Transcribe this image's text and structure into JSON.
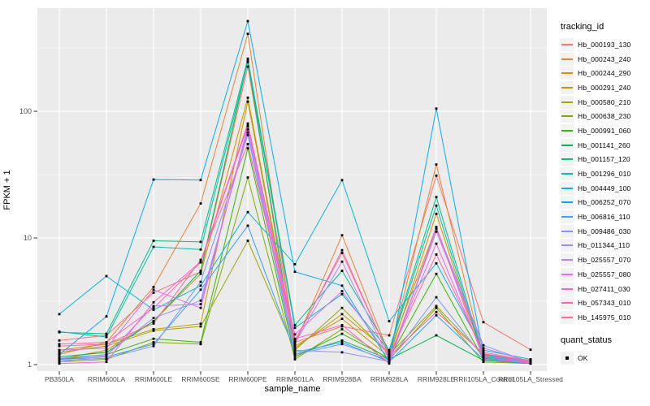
{
  "chart_data": {
    "type": "line",
    "title": "",
    "xlabel": "sample_name",
    "ylabel": "FPKM + 1",
    "y_scale": "log10",
    "ylim": [
      0.9,
      650
    ],
    "grid": "on",
    "legend_position": "right",
    "panel_bg": "#EBEBEB",
    "grid_color": "#FFFFFF",
    "tick_label_color": "#4D4D4D",
    "point_color": "#000000",
    "point_shape": "square",
    "y_ticks": [
      {
        "label": "1",
        "value": 1
      },
      {
        "label": "10",
        "value": 10
      },
      {
        "label": "100",
        "value": 100
      }
    ],
    "y_minor_ticks": [
      3.1623,
      31.623,
      316.23
    ],
    "categories": [
      "PB350LA",
      "RRIM600LA",
      "RRIM600LE",
      "RRIM600SE",
      "RRIM600PE",
      "RRIM901LA",
      "RRIM928BA",
      "RRIM928LA",
      "RRIM928LE",
      "RRII105LA_Control",
      "RRII105LA_Stressed"
    ],
    "legend_title": "tracking_id",
    "series": [
      {
        "name": "Hb_000193_130",
        "color": "#F8766D",
        "values": [
          1.55,
          1.7,
          3.7,
          5.4,
          225,
          1.5,
          2.0,
          1.7,
          31.0,
          2.16,
          1.31
        ]
      },
      {
        "name": "Hb_000243_240",
        "color": "#EA8331",
        "values": [
          1.2,
          1.5,
          4.1,
          18.7,
          408,
          1.45,
          10.5,
          1.2,
          38.0,
          1.15,
          1.05
        ]
      },
      {
        "name": "Hb_000244_290",
        "color": "#D89000",
        "values": [
          1.1,
          1.3,
          2.2,
          5.2,
          128,
          1.4,
          2.3,
          1.15,
          15.5,
          1.12,
          1.04
        ]
      },
      {
        "name": "Hb_000291_240",
        "color": "#C49A00",
        "values": [
          1.3,
          1.45,
          1.9,
          2.1,
          119,
          1.35,
          2.5,
          1.25,
          12.2,
          1.2,
          1.08
        ]
      },
      {
        "name": "Hb_000580_210",
        "color": "#A3A500",
        "values": [
          1.25,
          1.4,
          1.85,
          2.0,
          9.5,
          1.3,
          2.8,
          1.2,
          2.9,
          1.18,
          1.06
        ]
      },
      {
        "name": "Hb_000638_230",
        "color": "#7CAE00",
        "values": [
          1.05,
          1.1,
          1.5,
          1.45,
          30.0,
          1.1,
          1.9,
          1.1,
          2.8,
          1.05,
          1.02
        ]
      },
      {
        "name": "Hb_000991_060",
        "color": "#39B600",
        "values": [
          1.1,
          1.2,
          1.6,
          1.5,
          51.0,
          1.15,
          1.75,
          1.12,
          5.2,
          1.1,
          1.03
        ]
      },
      {
        "name": "Hb_001141_260",
        "color": "#00BB4E",
        "values": [
          1.15,
          1.25,
          2.2,
          5.5,
          250,
          1.2,
          1.55,
          1.1,
          1.7,
          1.08,
          1.02
        ]
      },
      {
        "name": "Hb_001157_120",
        "color": "#00C087",
        "values": [
          1.8,
          1.75,
          9.5,
          9.3,
          260,
          2.05,
          5.5,
          1.3,
          21.0,
          1.15,
          1.05
        ]
      },
      {
        "name": "Hb_001296_010",
        "color": "#00C0B2",
        "values": [
          1.82,
          1.65,
          8.5,
          8.1,
          245,
          1.95,
          3.6,
          1.28,
          18.0,
          1.12,
          1.04
        ]
      },
      {
        "name": "Hb_004449_100",
        "color": "#00BCD8",
        "values": [
          2.5,
          5.0,
          2.7,
          4.2,
          16.0,
          6.2,
          28.6,
          2.2,
          6.3,
          1.3,
          1.1
        ]
      },
      {
        "name": "Hb_006252_070",
        "color": "#00B0F6",
        "values": [
          1.2,
          2.4,
          28.9,
          28.6,
          515,
          5.4,
          4.2,
          1.05,
          105,
          1.2,
          1.05
        ]
      },
      {
        "name": "Hb_006816_110",
        "color": "#35A2FF",
        "values": [
          1.1,
          1.15,
          1.45,
          3.9,
          12.5,
          1.25,
          1.5,
          1.05,
          2.45,
          1.1,
          1.02
        ]
      },
      {
        "name": "Hb_009486_030",
        "color": "#7997FF",
        "values": [
          1.08,
          1.12,
          1.4,
          4.5,
          65.0,
          1.2,
          1.45,
          1.08,
          3.4,
          1.14,
          1.03
        ]
      },
      {
        "name": "Hb_011344_110",
        "color": "#9590FF",
        "values": [
          1.12,
          1.2,
          2.33,
          3.2,
          68.0,
          1.3,
          1.25,
          1.06,
          11.8,
          1.42,
          1.04
        ]
      },
      {
        "name": "Hb_025557_070",
        "color": "#BC80FF",
        "values": [
          1.05,
          1.18,
          2.9,
          3.0,
          72.0,
          1.47,
          6.5,
          1.1,
          11.2,
          1.35,
          1.06
        ]
      },
      {
        "name": "Hb_025557_080",
        "color": "#E76BF3",
        "values": [
          1.3,
          1.35,
          3.9,
          2.8,
          76.0,
          1.73,
          3.8,
          1.15,
          9.0,
          1.17,
          1.05
        ]
      },
      {
        "name": "Hb_027411_030",
        "color": "#FD61D1",
        "values": [
          1.02,
          1.05,
          3.1,
          6.5,
          80.0,
          1.6,
          2.05,
          1.02,
          12.1,
          1.1,
          1.03
        ]
      },
      {
        "name": "Hb_057343_010",
        "color": "#FF65AE",
        "values": [
          1.45,
          1.5,
          2.8,
          6.4,
          77.0,
          1.55,
          7.6,
          1.18,
          7.4,
          1.25,
          1.07
        ]
      },
      {
        "name": "Hb_145975_010",
        "color": "#FF6A98",
        "values": [
          1.4,
          1.45,
          2.11,
          6.7,
          55.0,
          1.5,
          8.0,
          1.16,
          2.6,
          1.22,
          1.06
        ]
      }
    ],
    "legend2_title": "quant_status",
    "legend2_items": [
      {
        "label": "OK",
        "marker": "black-square"
      }
    ]
  }
}
